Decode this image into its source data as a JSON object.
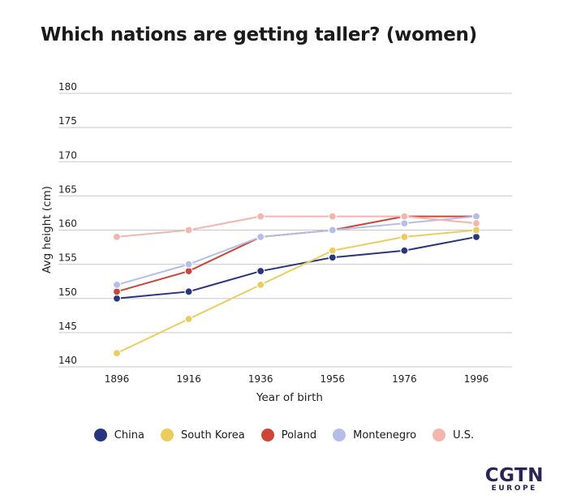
{
  "title": "Which nations are getting taller? (women)",
  "chart_data": {
    "type": "line",
    "x": [
      1896,
      1916,
      1936,
      1956,
      1976,
      1996
    ],
    "xlabel": "Year of birth",
    "ylabel": "Avg height (cm)",
    "ylim": [
      140,
      180
    ],
    "yticks": [
      140,
      145,
      150,
      155,
      160,
      165,
      170,
      175,
      180
    ],
    "grid": true,
    "legend_position": "bottom",
    "series": [
      {
        "name": "China",
        "color": "#27367f",
        "values": [
          150,
          151,
          154,
          156,
          157,
          159
        ]
      },
      {
        "name": "South Korea",
        "color": "#eccd5b",
        "values": [
          142,
          147,
          152,
          157,
          159,
          160
        ]
      },
      {
        "name": "Poland",
        "color": "#cf4535",
        "values": [
          151,
          154,
          159,
          160,
          162,
          162
        ]
      },
      {
        "name": "Montenegro",
        "color": "#b5bee9",
        "values": [
          152,
          155,
          159,
          160,
          161,
          162
        ]
      },
      {
        "name": "U.S.",
        "color": "#f4b5ad",
        "values": [
          159,
          160,
          162,
          162,
          162,
          161
        ]
      }
    ]
  },
  "logo": {
    "main": "CGTN",
    "sub": "EUROPE"
  }
}
